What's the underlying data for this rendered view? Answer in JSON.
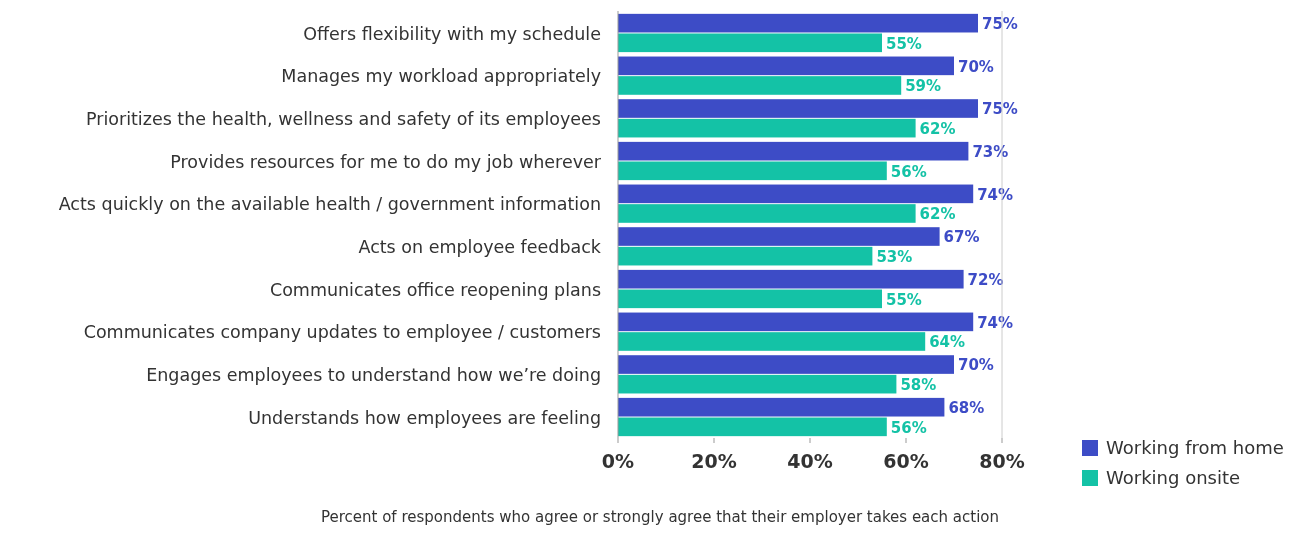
{
  "chart_data": {
    "type": "bar",
    "orientation": "horizontal",
    "xlabel": "Percent of respondents who agree or strongly agree that their employer takes each action",
    "categories": [
      "Offers flexibility with my schedule",
      "Manages my workload appropriately",
      "Prioritizes the health, wellness and safety of its employees",
      "Provides resources for me to do my job wherever",
      "Acts quickly on the available health / government information",
      "Acts on employee feedback",
      "Communicates office reopening plans",
      "Communicates company updates to employee / customers",
      "Engages employees to understand how we’re doing",
      "Understands how employees are feeling"
    ],
    "series": [
      {
        "name": "Working from home",
        "color": "#3d4cc6",
        "values": [
          75,
          70,
          75,
          73,
          74,
          67,
          72,
          74,
          70,
          68
        ],
        "value_labels": [
          "75%",
          "70%",
          "75%",
          "73%",
          "74%",
          "67%",
          "72%",
          "74%",
          "70%",
          "68%"
        ]
      },
      {
        "name": "Working onsite",
        "color": "#14c2a6",
        "values": [
          55,
          59,
          62,
          56,
          62,
          53,
          55,
          64,
          58,
          56
        ],
        "value_labels": [
          "55%",
          "59%",
          "62%",
          "56%",
          "62%",
          "53%",
          "55%",
          "64%",
          "58%",
          "56%"
        ]
      }
    ],
    "xlim": [
      0,
      80
    ],
    "xticks": [
      {
        "value": 0,
        "label": "0%"
      },
      {
        "value": 20,
        "label": "20%"
      },
      {
        "value": 40,
        "label": "40%"
      },
      {
        "value": 60,
        "label": "60%"
      },
      {
        "value": 80,
        "label": "80%"
      }
    ],
    "legend": "bottom right",
    "grid": false
  }
}
